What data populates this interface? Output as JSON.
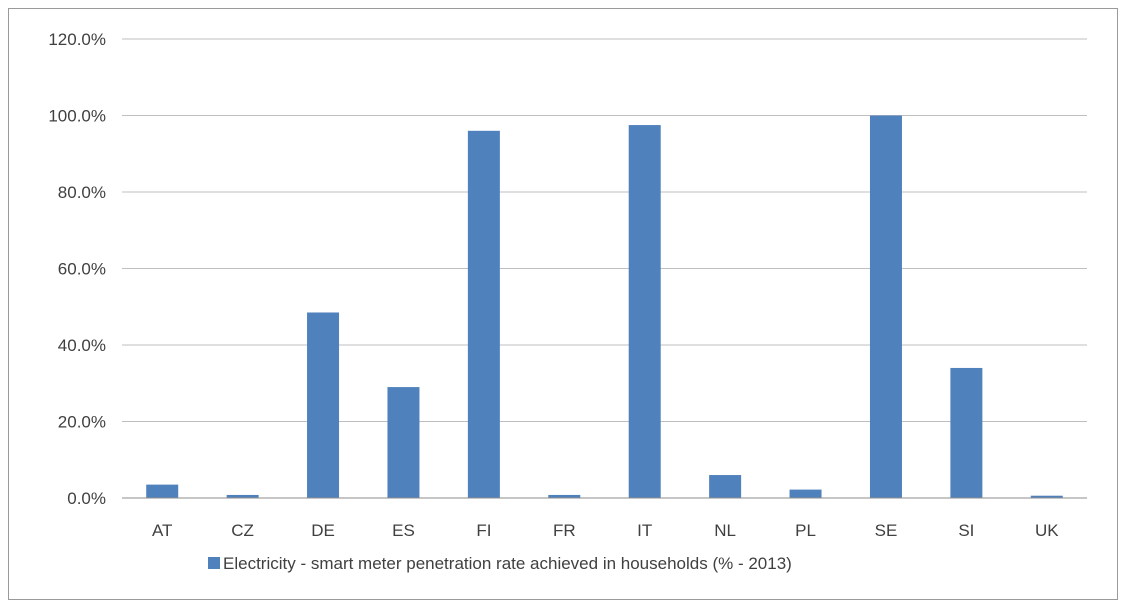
{
  "chart_data": {
    "type": "bar",
    "categories": [
      "AT",
      "CZ",
      "DE",
      "ES",
      "FI",
      "FR",
      "IT",
      "NL",
      "PL",
      "SE",
      "SI",
      "UK"
    ],
    "series": [
      {
        "name": "Electricity - smart meter penetration rate achieved in households (% - 2013)",
        "color": "#4f81bd",
        "values": [
          3.5,
          0.8,
          48.5,
          29.0,
          96.0,
          0.8,
          97.5,
          6.0,
          2.2,
          100.0,
          34.0,
          0.6
        ]
      }
    ],
    "ylim": [
      0,
      120
    ],
    "yticks": [
      "0.0%",
      "20.0%",
      "40.0%",
      "60.0%",
      "80.0%",
      "100.0%",
      "120.0%"
    ],
    "grid": true,
    "legend_position": "bottom",
    "title": "",
    "xlabel": "",
    "ylabel": ""
  }
}
